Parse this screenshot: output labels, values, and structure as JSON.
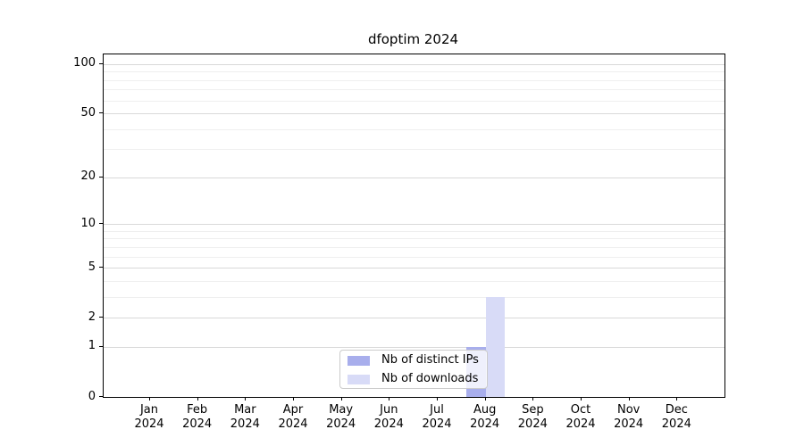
{
  "chart_data": {
    "type": "bar",
    "title": "dfoptim 2024",
    "categories": [
      "Jan 2024",
      "Feb 2024",
      "Mar 2024",
      "Apr 2024",
      "May 2024",
      "Jun 2024",
      "Jul 2024",
      "Aug 2024",
      "Sep 2024",
      "Oct 2024",
      "Nov 2024",
      "Dec 2024"
    ],
    "series": [
      {
        "name": "Nb of distinct IPs",
        "color": "#a8aeec",
        "values": [
          0,
          0,
          0,
          0,
          0,
          0,
          0,
          1,
          0,
          0,
          0,
          0
        ]
      },
      {
        "name": "Nb of downloads",
        "color": "#d8dbf7",
        "values": [
          0,
          0,
          0,
          0,
          0,
          0,
          0,
          3,
          0,
          0,
          0,
          0
        ]
      }
    ],
    "xlabel": "",
    "ylabel": "",
    "y_scale": "log1p",
    "y_major_ticks": [
      0,
      1,
      2,
      5,
      10,
      20,
      50,
      100
    ],
    "y_minor_ticks": [
      3,
      4,
      6,
      7,
      8,
      9,
      30,
      40,
      60,
      70,
      80,
      90
    ],
    "ylim": [
      0,
      115
    ],
    "grid": "horizontal",
    "legend_position": "lower center (inside plot)"
  },
  "colors": {
    "major_grid": "#d9d9d9",
    "minor_grid": "#efefef",
    "axis": "#000000",
    "legend_border": "#cbcbcb"
  }
}
